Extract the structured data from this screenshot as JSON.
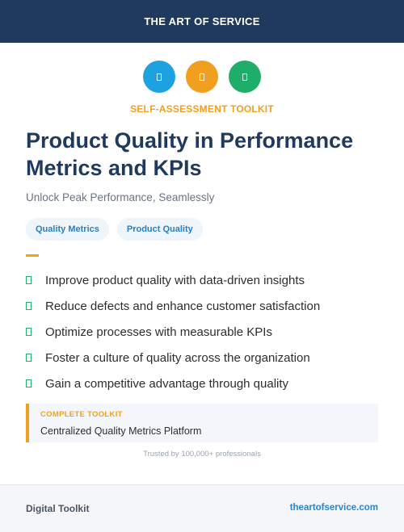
{
  "header": {
    "title": "THE ART OF SERVICE"
  },
  "icons": [
    {
      "name": "doc-icon",
      "color": "#1da1e0"
    },
    {
      "name": "doc-icon",
      "color": "#f0a01e"
    },
    {
      "name": "doc-icon",
      "color": "#1fad6a"
    }
  ],
  "eyebrow": "SELF-ASSESSMENT TOOLKIT",
  "title": "Product Quality in Performance Metrics and KPIs",
  "subtitle": "Unlock Peak Performance, Seamlessly",
  "tags": [
    "Quality Metrics",
    "Product Quality"
  ],
  "features": [
    "Improve product quality with data-driven insights",
    "Reduce defects and enhance customer satisfaction",
    "Optimize processes with measurable KPIs",
    "Foster a culture of quality across the organization",
    "Gain a competitive advantage through quality"
  ],
  "callout": {
    "label": "COMPLETE TOOLKIT",
    "text": "Centralized Quality Metrics Platform"
  },
  "trusted": "Trusted by 100,000+ professionals",
  "footer": {
    "left": "Digital Toolkit",
    "right": "theartofservice.com"
  },
  "colors": {
    "navy": "#1f3a5c",
    "orange": "#f0a01e",
    "green": "#1fad6a",
    "blue": "#1da1e0"
  }
}
